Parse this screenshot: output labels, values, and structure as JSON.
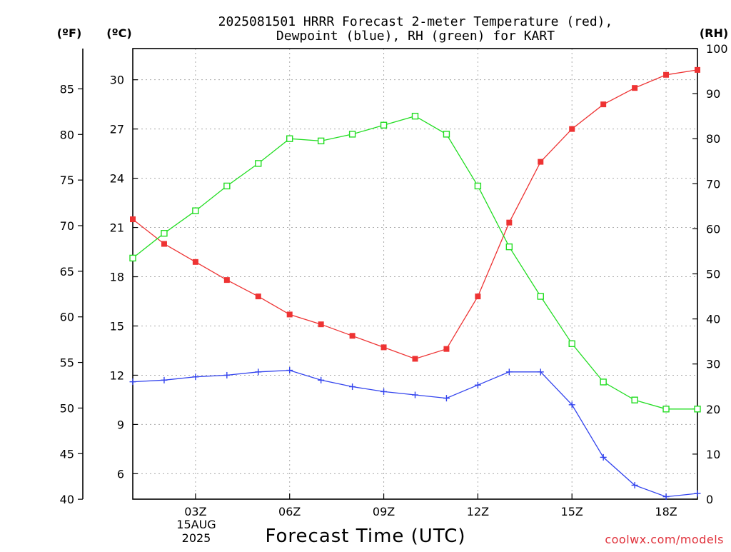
{
  "title": {
    "line1": "2025081501 HRRR Forecast 2-meter Temperature (red),",
    "line2": "Dewpoint (blue), RH (green) for KART"
  },
  "units": {
    "fahrenheit": "(ºF)",
    "celsius": "(ºC)",
    "rh": "(RH)"
  },
  "xlabel": "Forecast Time (UTC)",
  "date_label": [
    "15AUG",
    "2025"
  ],
  "watermark": "coolwx.com/models",
  "colors": {
    "temperature": "#ee3333",
    "dewpoint": "#3344ee",
    "rh": "#22dd22",
    "grid": "#aaaaaa"
  },
  "chart_data": {
    "type": "line",
    "x": [
      "01Z",
      "02Z",
      "03Z",
      "04Z",
      "05Z",
      "06Z",
      "07Z",
      "08Z",
      "09Z",
      "10Z",
      "11Z",
      "12Z",
      "13Z",
      "14Z",
      "15Z",
      "16Z",
      "17Z",
      "18Z",
      "19Z"
    ],
    "x_ticks": [
      "03Z",
      "06Z",
      "09Z",
      "12Z",
      "15Z",
      "18Z"
    ],
    "xlim": [
      "01Z",
      "19Z"
    ],
    "series": [
      {
        "name": "2-meter Temperature",
        "axis": "celsius",
        "marker": "filled-square",
        "values": [
          21.5,
          20.0,
          18.9,
          17.8,
          16.8,
          15.7,
          15.1,
          14.4,
          13.7,
          13.0,
          13.6,
          16.8,
          21.3,
          25.0,
          27.0,
          28.5,
          29.5,
          30.3,
          30.6
        ]
      },
      {
        "name": "Dewpoint",
        "axis": "celsius",
        "marker": "plus",
        "values": [
          11.6,
          11.7,
          11.9,
          12.0,
          12.2,
          12.3,
          11.7,
          11.3,
          11.0,
          10.8,
          10.6,
          11.4,
          12.2,
          12.2,
          10.2,
          7.0,
          5.3,
          4.6,
          4.8
        ]
      },
      {
        "name": "RH",
        "axis": "rh",
        "marker": "open-square",
        "values": [
          53.5,
          59.0,
          64.0,
          69.5,
          74.5,
          80.0,
          79.5,
          81.0,
          83.0,
          85.0,
          81.0,
          69.5,
          56.0,
          45.0,
          34.5,
          26.0,
          22.0,
          20.0,
          20.0
        ]
      }
    ],
    "axes": {
      "celsius": {
        "ticks": [
          6,
          9,
          12,
          15,
          18,
          21,
          24,
          27,
          30
        ],
        "ylim": [
          4.45,
          31.9
        ]
      },
      "fahrenheit": {
        "ticks": [
          40,
          45,
          50,
          55,
          60,
          65,
          70,
          75,
          80,
          85
        ]
      },
      "rh": {
        "ticks": [
          0,
          10,
          20,
          30,
          40,
          50,
          60,
          70,
          80,
          90,
          100
        ],
        "ylim": [
          0,
          100
        ]
      }
    },
    "grid": true
  }
}
